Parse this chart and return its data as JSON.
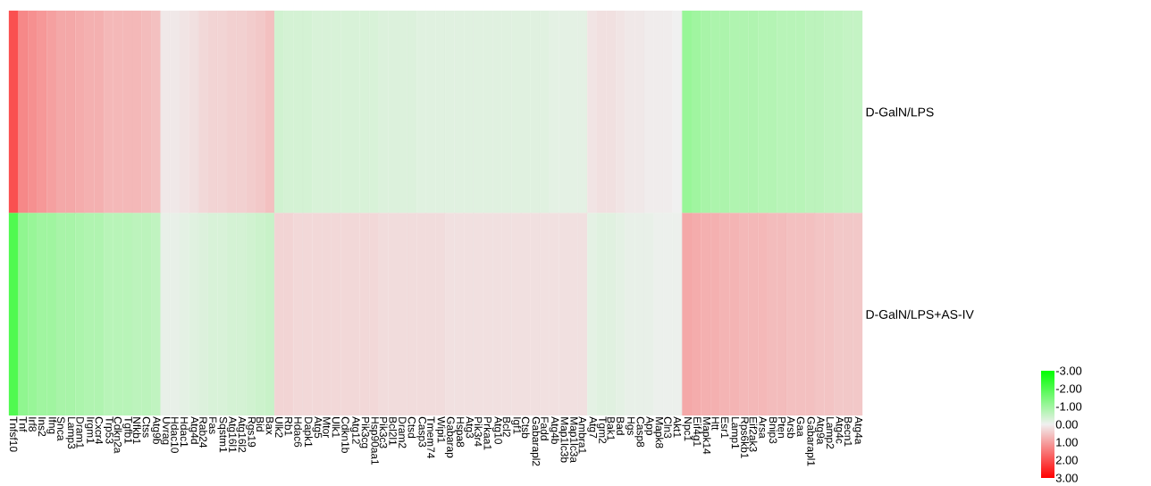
{
  "chart_data": {
    "type": "heatmap",
    "categories": [
      "Tnfsf10",
      "Tnf",
      "Irf8",
      "Ins2",
      "Ifng",
      "Snca",
      "Lamp3",
      "Dram1",
      "Irgm1",
      "Cxcr4",
      "Trp53",
      "Cdkn2a",
      "Tgfb1",
      "Nfkb1",
      "Ctss",
      "Atg9b",
      "Uvrag",
      "Hdac10",
      "Hdac1",
      "Atg4d",
      "Rab24",
      "Fas",
      "Sqstm1",
      "Atg16l1",
      "Atg16l2",
      "Rgs19",
      "Bid",
      "Bax",
      "Ulk2",
      "Rb1",
      "Hdac6",
      "Dapk1",
      "Atg5",
      "Mtor",
      "Ulk1",
      "Cdkn1b",
      "Atg12",
      "Pik3cg",
      "Hsp90aa1",
      "Pik3c3",
      "Bcl2l1",
      "Dram2",
      "Ctsd",
      "Casp3",
      "Tmem74",
      "Wipi1",
      "Gabarap",
      "Hspa8",
      "Atg3",
      "Pik3r4",
      "Prkaa1",
      "Atg10",
      "Bcl2",
      "Igf1",
      "Ctsb",
      "Gabarapl2",
      "Fadd",
      "Atg4b",
      "Map1lc3b",
      "Map1lc3a",
      "Ambra1",
      "Atg7",
      "Tgm2",
      "Bak1",
      "Bad",
      "Hgs",
      "Casp8",
      "App",
      "Mapk8",
      "Cln3",
      "Akt1",
      "Npc1",
      "Eif4g1",
      "Mapk14",
      "Htt",
      "Esr1",
      "Lamp1",
      "Rps6kb1",
      "Eif2ak3",
      "Arsa",
      "Bnip3",
      "Pten",
      "Arsb",
      "Gaa",
      "Gabarapl1",
      "Atg9a",
      "Lamp2",
      "Atg4c",
      "Becn1",
      "Atg4a"
    ],
    "y_categories": [
      "D-GalN/LPS",
      "D-GalN/LPS+AS-IV"
    ],
    "cells": [
      [
        2.0,
        1.3,
        1.2,
        1.1,
        1.0,
        0.9,
        0.9,
        0.85,
        0.8,
        0.8,
        0.7,
        0.7,
        0.7,
        0.7,
        0.65,
        0.6,
        0.1,
        0.1,
        0.15,
        0.2,
        0.3,
        0.35,
        0.35,
        0.4,
        0.4,
        0.45,
        0.5,
        0.6,
        -0.4,
        -0.35,
        -0.35,
        -0.35,
        -0.3,
        -0.3,
        -0.3,
        -0.3,
        -0.3,
        -0.3,
        -0.3,
        -0.25,
        -0.25,
        -0.25,
        -0.25,
        -0.2,
        -0.2,
        -0.2,
        -0.2,
        -0.2,
        -0.2,
        -0.2,
        -0.2,
        -0.2,
        -0.2,
        -0.2,
        -0.2,
        -0.2,
        -0.2,
        -0.15,
        -0.15,
        -0.15,
        -0.15,
        0.15,
        0.2,
        0.2,
        0.15,
        0.1,
        0.1,
        0.05,
        0.05,
        0.05,
        0.0,
        -1.1,
        -1.0,
        -0.9,
        -0.85,
        -0.85,
        -0.8,
        -0.8,
        -0.8,
        -0.75,
        -0.75,
        -0.7,
        -0.7,
        -0.7,
        -0.65,
        -0.65,
        -0.6,
        -0.6,
        -0.55,
        -0.55
      ],
      [
        -2.0,
        -1.2,
        -1.1,
        -1.0,
        -1.0,
        -0.9,
        -0.9,
        -0.85,
        -0.8,
        -0.8,
        -0.7,
        -0.7,
        -0.7,
        -0.65,
        -0.65,
        -0.6,
        -0.1,
        -0.1,
        -0.15,
        -0.2,
        -0.25,
        -0.3,
        -0.3,
        -0.35,
        -0.35,
        -0.4,
        -0.45,
        -0.5,
        0.35,
        0.35,
        0.3,
        0.3,
        0.3,
        0.3,
        0.3,
        0.3,
        0.3,
        0.3,
        0.3,
        0.25,
        0.25,
        0.25,
        0.25,
        0.25,
        0.25,
        0.25,
        0.2,
        0.2,
        0.2,
        0.2,
        0.2,
        0.2,
        0.2,
        0.2,
        0.2,
        0.2,
        0.2,
        0.2,
        0.2,
        0.2,
        0.2,
        -0.15,
        -0.2,
        -0.2,
        -0.15,
        -0.1,
        -0.1,
        -0.1,
        -0.05,
        -0.05,
        -0.05,
        0.9,
        0.85,
        0.8,
        0.8,
        0.75,
        0.75,
        0.7,
        0.7,
        0.7,
        0.65,
        0.65,
        0.6,
        0.6,
        0.6,
        0.55,
        0.55,
        0.5,
        0.5,
        0.5
      ]
    ],
    "clim": [
      -3,
      3
    ],
    "cticks": [
      {
        "value": -3,
        "label": "-3.00"
      },
      {
        "value": -2,
        "label": "-2.00"
      },
      {
        "value": -1,
        "label": "-1.00"
      },
      {
        "value": 0,
        "label": "0.00"
      },
      {
        "value": 1,
        "label": "1.00"
      },
      {
        "value": 2,
        "label": "2.00"
      },
      {
        "value": 3,
        "label": "3.00"
      }
    ]
  }
}
